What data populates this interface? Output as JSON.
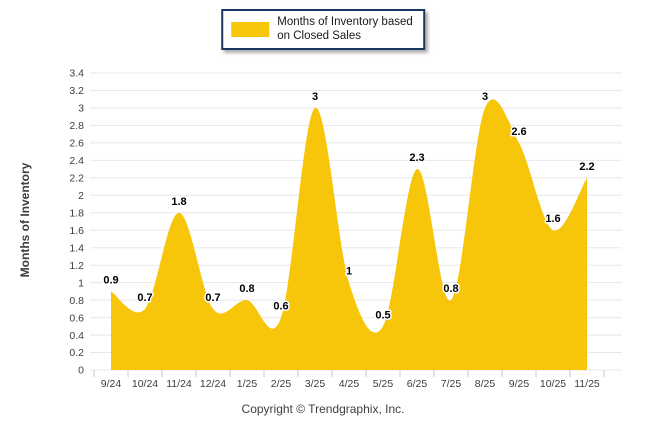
{
  "chart_data": {
    "type": "area",
    "categories": [
      "9/24",
      "10/24",
      "11/24",
      "12/24",
      "1/25",
      "2/25",
      "3/25",
      "4/25",
      "5/25",
      "6/25",
      "7/25",
      "8/25",
      "9/25",
      "10/25",
      "11/25"
    ],
    "values": [
      0.9,
      0.7,
      1.8,
      0.7,
      0.8,
      0.6,
      3,
      1,
      0.5,
      2.3,
      0.8,
      3,
      2.6,
      1.6,
      2.2
    ],
    "point_labels": [
      "0.9",
      "0.7",
      "1.8",
      "0.7",
      "0.8",
      "0.6",
      "3",
      "1",
      "0.5",
      "2.3",
      "0.8",
      "3",
      "2.6",
      "1.6",
      "2.2"
    ],
    "xlabel": "",
    "ylabel": "Months of Inventory",
    "ylim": [
      0,
      3.4
    ],
    "ytick_step": 0.2,
    "ytick_labels": [
      "0",
      "0.2",
      "0.4",
      "0.6",
      "0.8",
      "1",
      "1.2",
      "1.4",
      "1.6",
      "1.8",
      "2",
      "2.2",
      "2.4",
      "2.6",
      "2.8",
      "3",
      "3.2",
      "3.4"
    ],
    "grid": "horizontal",
    "smooth": true,
    "legend": {
      "position": "top-center",
      "line1": "Months of Inventory based",
      "line2": "on Closed Sales"
    },
    "colors": {
      "area": "#F7C60A",
      "grid": "#E8E8E8",
      "axis_tick": "#C9C9C9",
      "tick_text": "#3d3d3d",
      "data_label": "#000000",
      "legend_border": "#17375E"
    }
  },
  "footer": {
    "copyright": "Copyright © Trendgraphix, Inc."
  }
}
